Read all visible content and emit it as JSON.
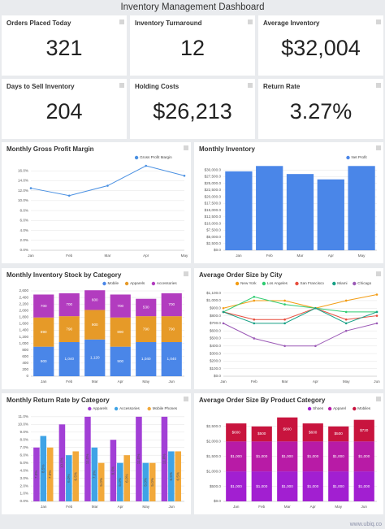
{
  "title": "Inventory Management Dashboard",
  "kpis": [
    {
      "label": "Orders Placed Today",
      "value": "321"
    },
    {
      "label": "Inventory Turnaround",
      "value": "12"
    },
    {
      "label": "Average Inventory",
      "value": "$32,004"
    },
    {
      "label": "Days to Sell Inventory",
      "value": "204"
    },
    {
      "label": "Holding Costs",
      "value": "$26,213"
    },
    {
      "label": "Return Rate",
      "value": "3.27%"
    }
  ],
  "chart_data": [
    {
      "type": "line",
      "title": "Monthly Gross Profit Margin",
      "categories": [
        "Jan",
        "Feb",
        "Mar",
        "Apr",
        "May"
      ],
      "series": [
        {
          "name": "Gross Profit Margin",
          "color": "#4a90e2",
          "values": [
            12.5,
            11,
            13,
            17,
            15
          ]
        }
      ],
      "ylim": [
        0,
        17.5
      ],
      "yticks": [
        {
          "value": 0,
          "label": "0.0%"
        },
        {
          "value": 2,
          "label": "2.0%"
        },
        {
          "value": 4,
          "label": "4.0%"
        },
        {
          "value": 6,
          "label": "6.0%"
        },
        {
          "value": 8,
          "label": "8.0%"
        },
        {
          "value": 10,
          "label": "10.0%"
        },
        {
          "value": 12,
          "label": "12.0%"
        },
        {
          "value": 14,
          "label": "14.0%"
        },
        {
          "value": 16,
          "label": "16.0%"
        }
      ],
      "grid": true,
      "legend": "top-right"
    },
    {
      "type": "bar",
      "title": "Monthly Inventory",
      "categories": [
        "Jan",
        "Feb",
        "Mar",
        "Apr",
        "May"
      ],
      "series": [
        {
          "name": "Net Profit",
          "color": "#4a86e8",
          "values": [
            29500,
            31500,
            28500,
            26500,
            31500
          ]
        }
      ],
      "ylim": [
        0,
        32500
      ],
      "yticks": [
        {
          "value": 0,
          "label": "$0.0"
        },
        {
          "value": 2500,
          "label": "$2,500.0"
        },
        {
          "value": 5000,
          "label": "$5,000.0"
        },
        {
          "value": 7500,
          "label": "$7,500.0"
        },
        {
          "value": 10000,
          "label": "$10,000.0"
        },
        {
          "value": 12500,
          "label": "$12,500.0"
        },
        {
          "value": 15000,
          "label": "$15,000.0"
        },
        {
          "value": 17500,
          "label": "$17,500.0"
        },
        {
          "value": 20000,
          "label": "$20,000.0"
        },
        {
          "value": 22500,
          "label": "$22,500.0"
        },
        {
          "value": 25000,
          "label": "$25,000.0"
        },
        {
          "value": 27500,
          "label": "$27,500.0"
        },
        {
          "value": 30000,
          "label": "$30,000.0"
        }
      ],
      "grid": true,
      "legend": "top-right"
    },
    {
      "type": "stacked_bar",
      "title": "Monthly Inventory Stock by Category",
      "categories": [
        "Jan",
        "Feb",
        "Mar",
        "Apr",
        "May",
        "Jun"
      ],
      "series": [
        {
          "name": "Mobile",
          "color": "#4a86e8",
          "values": [
            900,
            1040,
            1120,
            900,
            1040,
            1040
          ],
          "value_labels": [
            "900",
            "1,040",
            "1,120",
            "900",
            "1,040",
            "1,040"
          ]
        },
        {
          "name": "Apparels",
          "color": "#e69a28",
          "values": [
            890,
            790,
            900,
            890,
            790,
            790
          ],
          "value_labels": [
            "890",
            "790",
            "900",
            "890",
            "790",
            "790"
          ]
        },
        {
          "name": "Accessories",
          "color": "#b23cbf",
          "values": [
            700,
            700,
            600,
            700,
            530,
            700
          ],
          "value_labels": [
            "700",
            "700",
            "600",
            "700",
            "530",
            "700"
          ]
        }
      ],
      "ylim": [
        0,
        2650
      ],
      "yticks": [
        0,
        200,
        400,
        600,
        800,
        {
          "value": 1000,
          "label": "1,000"
        },
        {
          "value": 1200,
          "label": "1,200"
        },
        {
          "value": 1400,
          "label": "1,400"
        },
        {
          "value": 1600,
          "label": "1,600"
        },
        {
          "value": 1800,
          "label": "1,800"
        },
        {
          "value": 2000,
          "label": "2,000"
        },
        {
          "value": 2200,
          "label": "2,200"
        },
        {
          "value": 2400,
          "label": "2,400"
        },
        {
          "value": 2600,
          "label": "2,600"
        }
      ],
      "grid": true,
      "legend": "top-right"
    },
    {
      "type": "line",
      "title": "Average Order Size by City",
      "categories": [
        "Jan",
        "Feb",
        "Mar",
        "Apr",
        "May",
        "Jun"
      ],
      "series": [
        {
          "name": "New York",
          "color": "#f39c12",
          "values": [
            900,
            1000,
            1000,
            900,
            1000,
            1080
          ]
        },
        {
          "name": "Los Angeles",
          "color": "#2ecc71",
          "values": [
            850,
            1050,
            950,
            900,
            850,
            850
          ]
        },
        {
          "name": "San Francisco",
          "color": "#e74c3c",
          "values": [
            850,
            750,
            750,
            900,
            750,
            800
          ]
        },
        {
          "name": "Miami",
          "color": "#16a085",
          "values": [
            850,
            700,
            700,
            900,
            700,
            850
          ]
        },
        {
          "name": "Chicago",
          "color": "#9b59b6",
          "values": [
            700,
            500,
            400,
            400,
            600,
            700
          ]
        }
      ],
      "ylim": [
        0,
        1150
      ],
      "yticks": [
        {
          "value": 0,
          "label": "$0.0"
        },
        {
          "value": 100,
          "label": "$100.0"
        },
        {
          "value": 200,
          "label": "$200.0"
        },
        {
          "value": 300,
          "label": "$300.0"
        },
        {
          "value": 400,
          "label": "$400.0"
        },
        {
          "value": 500,
          "label": "$500.0"
        },
        {
          "value": 600,
          "label": "$600.0"
        },
        {
          "value": 700,
          "label": "$700.0"
        },
        {
          "value": 800,
          "label": "$800.0"
        },
        {
          "value": 900,
          "label": "$900.0"
        },
        {
          "value": 1000,
          "label": "$1,000.0"
        },
        {
          "value": 1100,
          "label": "$1,100.0"
        }
      ],
      "grid": true,
      "legend": "top-right"
    },
    {
      "type": "grouped_bar",
      "title": "Monthly Return Rate by Category",
      "categories": [
        "Jan",
        "Feb",
        "Mar",
        "Apr",
        "May",
        "Jun"
      ],
      "series": [
        {
          "name": "Apparels",
          "color": "#a23fd6",
          "values": [
            7,
            10,
            11,
            8,
            11,
            11
          ],
          "value_labels": [
            "7.0%",
            "10.0%",
            "11.0%",
            "8.0%",
            "11.0%",
            "11.0%"
          ]
        },
        {
          "name": "Accessories",
          "color": "#3fa3e6",
          "values": [
            8.5,
            6,
            7,
            5,
            5,
            6.5
          ],
          "value_labels": [
            "8.5%",
            "6.0%",
            "7.0%",
            "5.0%",
            "5.0%",
            "6.5%"
          ]
        },
        {
          "name": "Mobile Phones",
          "color": "#f2a93b",
          "values": [
            7,
            6.5,
            5,
            6,
            5,
            6.5
          ],
          "value_labels": [
            "7.0%",
            "6.5%",
            "5.0%",
            "6.0%",
            "5.0%",
            "6.5%"
          ]
        }
      ],
      "ylim": [
        0,
        11.3
      ],
      "yticks": [
        {
          "value": 0,
          "label": "0.0%"
        },
        {
          "value": 1,
          "label": "1.0%"
        },
        {
          "value": 2,
          "label": "2.0%"
        },
        {
          "value": 3,
          "label": "3.0%"
        },
        {
          "value": 4,
          "label": "4.0%"
        },
        {
          "value": 5,
          "label": "5.0%"
        },
        {
          "value": 6,
          "label": "6.0%"
        },
        {
          "value": 7,
          "label": "7.0%"
        },
        {
          "value": 8,
          "label": "8.0%"
        },
        {
          "value": 9,
          "label": "9.0%"
        },
        {
          "value": 10,
          "label": "10.0%"
        },
        {
          "value": 11,
          "label": "11.0%"
        }
      ],
      "grid": true,
      "legend": "top-right"
    },
    {
      "type": "stacked_bar",
      "title": "Average Order Size By Product Category",
      "categories": [
        "Jan",
        "Feb",
        "Mar",
        "Apr",
        "May",
        "Jun"
      ],
      "series": [
        {
          "name": "Shoes",
          "color": "#a21fd1",
          "values": [
            1000,
            1000,
            1000,
            1000,
            1000,
            1000
          ],
          "value_labels": [
            "$1,000",
            "$1,000",
            "$1,000",
            "$1,000",
            "$1,000",
            "$1,000"
          ]
        },
        {
          "name": "Apparel",
          "color": "#b81ba6",
          "values": [
            1000,
            1000,
            1000,
            1000,
            1000,
            1000
          ],
          "value_labels": [
            "$1,000",
            "$1,000",
            "$1,000",
            "$1,000",
            "$1,000",
            "$1,000"
          ]
        },
        {
          "name": "Mobiles",
          "color": "#c8143e",
          "values": [
            600,
            500,
            800,
            600,
            500,
            720
          ],
          "value_labels": [
            "$600",
            "$500",
            "$800",
            "$600",
            "$500",
            "$720"
          ]
        }
      ],
      "ylim": [
        0,
        2900
      ],
      "yticks": [
        {
          "value": 0,
          "label": "$0.0"
        },
        {
          "value": 500,
          "label": "$500.0"
        },
        {
          "value": 1000,
          "label": "$1,000.0"
        },
        {
          "value": 1500,
          "label": "$1,500.0"
        },
        {
          "value": 2000,
          "label": "$2,000.0"
        },
        {
          "value": 2500,
          "label": "$2,500.0"
        }
      ],
      "grid": true,
      "legend": "top-right"
    }
  ],
  "watermark": "www.ubiq.co"
}
